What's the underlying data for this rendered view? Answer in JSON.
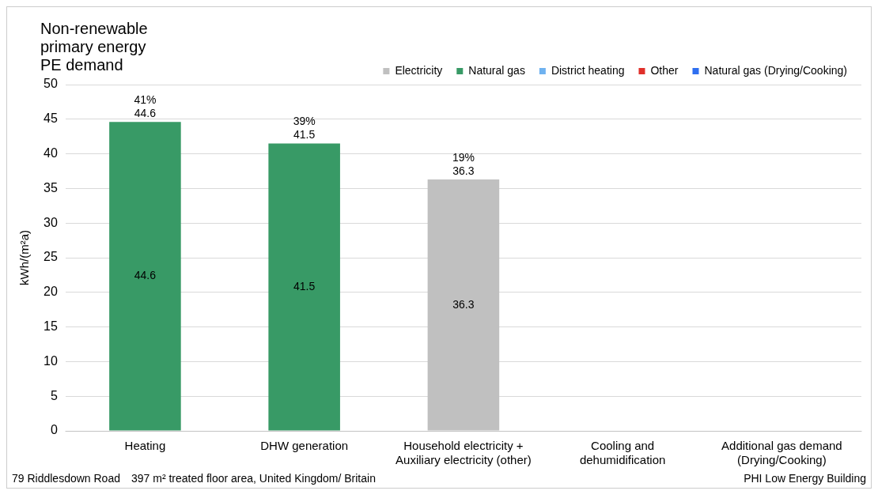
{
  "chart_data": {
    "type": "bar",
    "title": "Non-renewable\nprimary energy\nPE demand",
    "ylabel": "kWh/(m²a)",
    "categories": [
      "Heating",
      "DHW generation",
      "Household electricity +\nAuxiliary electricity (other)",
      "Cooling and\ndehumidification",
      "Additional gas demand\n(Drying/Cooking)"
    ],
    "series": [
      {
        "name": "Electricity",
        "color": "#c0c0c0",
        "values": [
          null,
          null,
          36.3,
          null,
          null
        ]
      },
      {
        "name": "Natural gas",
        "color": "#389a66",
        "values": [
          44.6,
          41.5,
          null,
          null,
          null
        ]
      },
      {
        "name": "District heating",
        "color": "#6fb2f0",
        "values": [
          null,
          null,
          null,
          null,
          null
        ]
      },
      {
        "name": "Other",
        "color": "#e0302a",
        "values": [
          null,
          null,
          null,
          null,
          null
        ]
      },
      {
        "name": "Natural gas (Drying/Cooking)",
        "color": "#2f6ff0",
        "values": [
          null,
          null,
          null,
          null,
          null
        ]
      }
    ],
    "stacked": true,
    "data_labels": true,
    "totals": [
      "41%\n44.6",
      "39%\n41.5",
      "19%\n36.3",
      null,
      null
    ],
    "ylim": [
      0,
      50
    ],
    "yticks": [
      0,
      5,
      10,
      15,
      20,
      25,
      30,
      35,
      40,
      45,
      50
    ],
    "grid": "y",
    "legend": "top right",
    "annotations": [
      "79 Riddlesdown Road",
      "397 m² treated floor area, United Kingdom/ Britain",
      "PHI Low Energy Building"
    ]
  }
}
